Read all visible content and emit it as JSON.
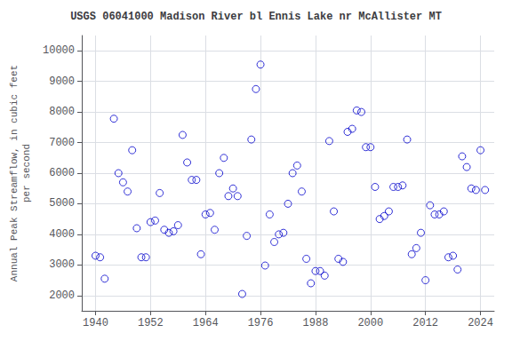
{
  "chart_data": {
    "type": "scatter",
    "title": "USGS 06041000 Madison River bl Ennis Lake nr McAllister MT",
    "ylabel": "Annual Peak Streamflow, in cubic feet\nper second",
    "x": [
      1940,
      1941,
      1942,
      1944,
      1945,
      1946,
      1947,
      1948,
      1949,
      1950,
      1951,
      1952,
      1953,
      1954,
      1955,
      1956,
      1957,
      1958,
      1959,
      1960,
      1961,
      1962,
      1963,
      1964,
      1965,
      1966,
      1967,
      1968,
      1969,
      1970,
      1971,
      1972,
      1973,
      1974,
      1975,
      1976,
      1977,
      1978,
      1979,
      1980,
      1981,
      1982,
      1983,
      1984,
      1985,
      1986,
      1987,
      1988,
      1989,
      1990,
      1991,
      1992,
      1993,
      1994,
      1995,
      1996,
      1997,
      1998,
      1999,
      2000,
      2001,
      2002,
      2003,
      2004,
      2005,
      2006,
      2007,
      2008,
      2009,
      2010,
      2011,
      2012,
      2013,
      2014,
      2015,
      2016,
      2017,
      2018,
      2019,
      2020,
      2021,
      2022,
      2023,
      2024,
      2025
    ],
    "values": [
      3300,
      3250,
      2550,
      7780,
      6000,
      5700,
      5400,
      6750,
      4200,
      3250,
      3250,
      4400,
      4450,
      5350,
      4150,
      4050,
      4100,
      4300,
      7250,
      6350,
      5780,
      5780,
      3350,
      4650,
      4700,
      4150,
      6000,
      6500,
      5250,
      5500,
      5250,
      2050,
      3950,
      7100,
      8750,
      9550,
      2980,
      4650,
      3750,
      4000,
      4050,
      5000,
      6000,
      6250,
      5400,
      3200,
      2400,
      2800,
      2800,
      2650,
      7050,
      4750,
      3200,
      3100,
      7350,
      7450,
      8050,
      8000,
      6850,
      6850,
      5550,
      4500,
      4600,
      4750,
      5550,
      5550,
      5600,
      7100,
      3350,
      3550,
      4050,
      2500,
      4950,
      4650,
      4650,
      4750,
      3250,
      3300,
      2850,
      6550,
      6200,
      5500,
      5450,
      6750,
      5450
    ],
    "color": "#0000cc",
    "marker": "circle",
    "xlim": [
      1937,
      2027
    ],
    "xticks": [
      1940,
      1952,
      1964,
      1976,
      1988,
      2000,
      2012,
      2024
    ],
    "ylim": [
      1500,
      10500
    ],
    "yticks": [
      2000,
      3000,
      4000,
      5000,
      6000,
      7000,
      8000,
      9000,
      10000
    ],
    "grid": true
  }
}
